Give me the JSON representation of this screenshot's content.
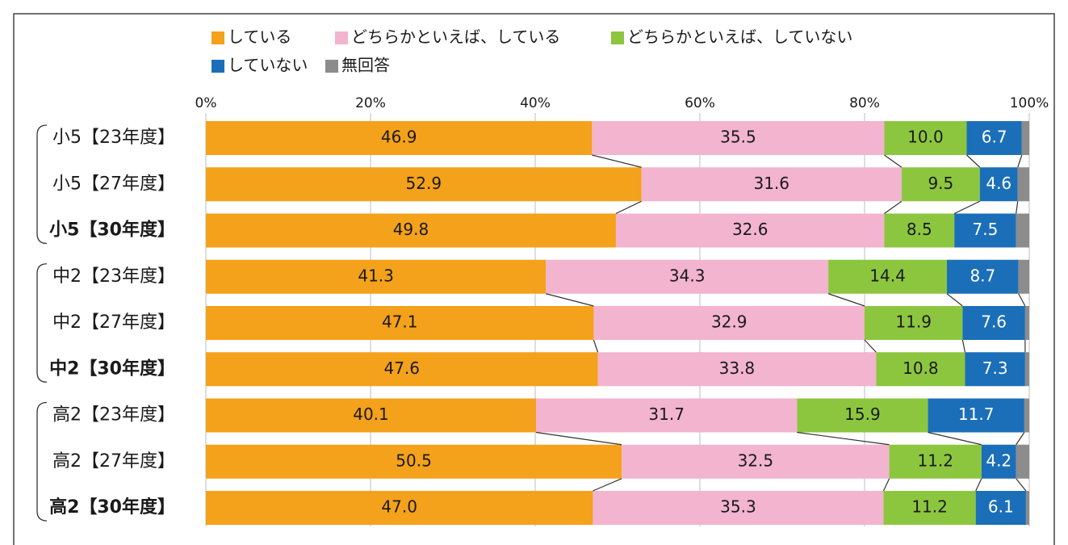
{
  "chart_data": {
    "type": "stacked-bar-horizontal",
    "categories": [
      "小5【23年度】",
      "小5【27年度】",
      "小5【30年度】",
      "中2【23年度】",
      "中2【27年度】",
      "中2【30年度】",
      "高2【23年度】",
      "高2【27年度】",
      "高2【30年度】"
    ],
    "series": [
      {
        "name": "している",
        "color": "#f4a11b",
        "label_color": "#1a1a1a",
        "values": [
          46.9,
          52.9,
          49.8,
          41.3,
          47.1,
          47.6,
          40.1,
          50.5,
          47.0
        ],
        "value_labels": [
          "46.9",
          "52.9",
          "49.8",
          "41.3",
          "47.1",
          "47.6",
          "40.1",
          "50.5",
          "47.0"
        ]
      },
      {
        "name": "どちらかといえば、している",
        "color": "#f2b4cf",
        "label_color": "#1a1a1a",
        "values": [
          35.5,
          31.6,
          32.6,
          34.3,
          32.9,
          33.8,
          31.7,
          32.5,
          35.3
        ],
        "value_labels": [
          "35.5",
          "31.6",
          "32.6",
          "34.3",
          "32.9",
          "33.8",
          "31.7",
          "32.5",
          "35.3"
        ]
      },
      {
        "name": "どちらかといえば、していない",
        "color": "#8cc63f",
        "label_color": "#1a1a1a",
        "values": [
          10.0,
          9.5,
          8.5,
          14.4,
          11.9,
          10.8,
          15.9,
          11.2,
          11.2
        ],
        "value_labels": [
          "10.0",
          "9.5",
          "8.5",
          "14.4",
          "11.9",
          "10.8",
          "15.9",
          "11.2",
          "11.2"
        ]
      },
      {
        "name": "していない",
        "color": "#1b6fb8",
        "label_color": "#ffffff",
        "values": [
          6.7,
          4.6,
          7.5,
          8.7,
          7.6,
          7.3,
          11.7,
          4.2,
          6.1
        ],
        "value_labels": [
          "6.7",
          "4.6",
          "7.5",
          "8.7",
          "7.6",
          "7.3",
          "11.7",
          "4.2",
          "6.1"
        ]
      },
      {
        "name": "無回答",
        "color": "#8c8c8c",
        "values": [
          0.9,
          1.4,
          1.6,
          1.3,
          0.5,
          0.5,
          0.6,
          1.6,
          0.4
        ]
      }
    ],
    "xlim": [
      0,
      100
    ],
    "xticks": [
      {
        "value": 0,
        "label": "0%"
      },
      {
        "value": 20,
        "label": "20%"
      },
      {
        "value": 40,
        "label": "40%"
      },
      {
        "value": 60,
        "label": "60%"
      },
      {
        "value": 80,
        "label": "80%"
      },
      {
        "value": 100,
        "label": "100%"
      }
    ],
    "grid": true
  }
}
